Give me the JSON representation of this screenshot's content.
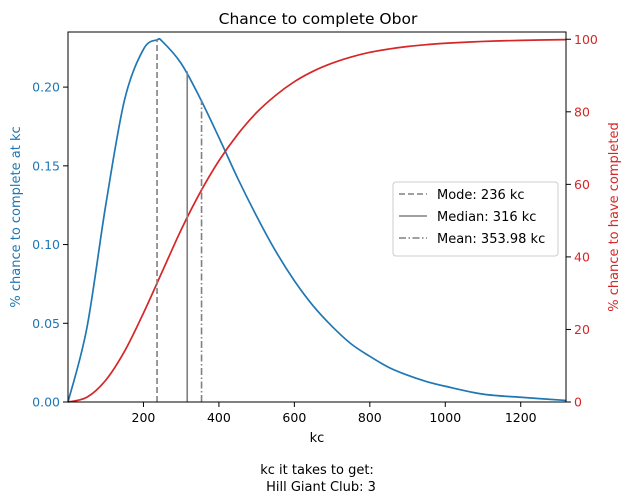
{
  "chart_data": {
    "type": "line",
    "title": "Chance to complete Obor",
    "xlabel": "kc",
    "ylabel_left": "% chance to complete at kc",
    "ylabel_right": "% chance to have completed",
    "footer_line1": "kc it takes to get:",
    "footer_line2": "Hill Giant Club: 3",
    "xlim": [
      0,
      1320
    ],
    "ylim_left": [
      0,
      0.235
    ],
    "ylim_right": [
      0,
      102
    ],
    "x_ticks": [
      200,
      400,
      600,
      800,
      1000,
      1200
    ],
    "y_left_ticks": [
      0.0,
      0.05,
      0.1,
      0.15,
      0.2
    ],
    "y_left_tick_labels": [
      "0.00",
      "0.05",
      "0.10",
      "0.15",
      "0.20"
    ],
    "y_right_ticks": [
      0,
      20,
      40,
      60,
      80,
      100
    ],
    "grid": false,
    "legend_position": "center-right",
    "colors": {
      "pmf": "#1f77b4",
      "cdf": "#d62728",
      "markers": "#808080",
      "legend_border": "#cccccc"
    },
    "series": [
      {
        "name": "",
        "axis": "left",
        "x": [
          0,
          50,
          100,
          150,
          200,
          236,
          250,
          300,
          350,
          400,
          450,
          500,
          550,
          600,
          650,
          700,
          750,
          800,
          850,
          900,
          950,
          1000,
          1100,
          1200,
          1320
        ],
        "values": [
          0,
          0.047,
          0.125,
          0.192,
          0.224,
          0.23,
          0.229,
          0.215,
          0.193,
          0.168,
          0.142,
          0.118,
          0.096,
          0.077,
          0.061,
          0.048,
          0.037,
          0.029,
          0.022,
          0.017,
          0.013,
          0.01,
          0.005,
          0.003,
          0.001
        ]
      },
      {
        "name": "",
        "axis": "right",
        "x": [
          0,
          50,
          100,
          150,
          200,
          250,
          300,
          350,
          400,
          450,
          500,
          550,
          600,
          650,
          700,
          750,
          800,
          850,
          900,
          950,
          1000,
          1100,
          1200,
          1320
        ],
        "values": [
          0,
          1.3,
          6,
          14,
          24.5,
          36,
          47.5,
          57.7,
          66.5,
          73.8,
          79.8,
          84.5,
          88.3,
          91.2,
          93.4,
          95.1,
          96.4,
          97.3,
          98.0,
          98.5,
          98.9,
          99.4,
          99.7,
          99.9
        ]
      }
    ],
    "markers": [
      {
        "label": "Mode: 236 kc",
        "x": 236,
        "style": "dashed",
        "pmf": 0.23
      },
      {
        "label": "Median: 316 kc",
        "x": 316,
        "style": "solid",
        "pmf": 0.21
      },
      {
        "label": "Mean: 353.98 kc",
        "x": 353.98,
        "style": "dashdot",
        "pmf": 0.192
      }
    ]
  }
}
